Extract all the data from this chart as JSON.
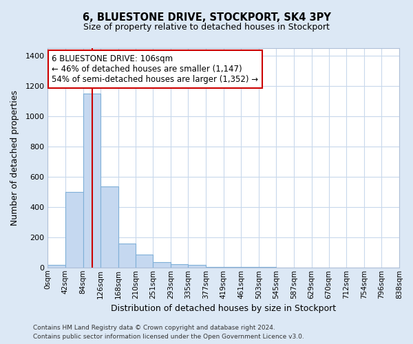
{
  "title": "6, BLUESTONE DRIVE, STOCKPORT, SK4 3PY",
  "subtitle": "Size of property relative to detached houses in Stockport",
  "xlabel": "Distribution of detached houses by size in Stockport",
  "ylabel": "Number of detached properties",
  "bin_edges": [
    0,
    42,
    84,
    126,
    168,
    210,
    251,
    293,
    335,
    377,
    419,
    461,
    503,
    545,
    587,
    629,
    670,
    712,
    754,
    796,
    838
  ],
  "bar_heights": [
    15,
    500,
    1150,
    535,
    160,
    85,
    35,
    20,
    15,
    5,
    5,
    3,
    2,
    1,
    1,
    1,
    1,
    1,
    1,
    1
  ],
  "bar_color": "#c5d8f0",
  "bar_edgecolor": "#7fb0d8",
  "bar_linewidth": 0.8,
  "vline_x": 106,
  "vline_color": "#cc0000",
  "vline_linewidth": 1.5,
  "annotation_line1": "6 BLUESTONE DRIVE: 106sqm",
  "annotation_line2": "← 46% of detached houses are smaller (1,147)",
  "annotation_line3": "54% of semi-detached houses are larger (1,352) →",
  "annotation_box_edgecolor": "#cc0000",
  "annotation_box_facecolor": "white",
  "ylim": [
    0,
    1450
  ],
  "yticks": [
    0,
    200,
    400,
    600,
    800,
    1000,
    1200,
    1400
  ],
  "grid_color": "#c8d8ec",
  "background_color": "#dce8f5",
  "plot_background": "white",
  "footer_line1": "Contains HM Land Registry data © Crown copyright and database right 2024.",
  "footer_line2": "Contains public sector information licensed under the Open Government Licence v3.0.",
  "tick_labels": [
    "0sqm",
    "42sqm",
    "84sqm",
    "126sqm",
    "168sqm",
    "210sqm",
    "251sqm",
    "293sqm",
    "335sqm",
    "377sqm",
    "419sqm",
    "461sqm",
    "503sqm",
    "545sqm",
    "587sqm",
    "629sqm",
    "670sqm",
    "712sqm",
    "754sqm",
    "796sqm",
    "838sqm"
  ],
  "title_fontsize": 10.5,
  "subtitle_fontsize": 9,
  "axis_label_fontsize": 9,
  "tick_fontsize": 7.5,
  "ylabel_fontsize": 9,
  "annotation_fontsize": 8.5,
  "footer_fontsize": 6.5
}
